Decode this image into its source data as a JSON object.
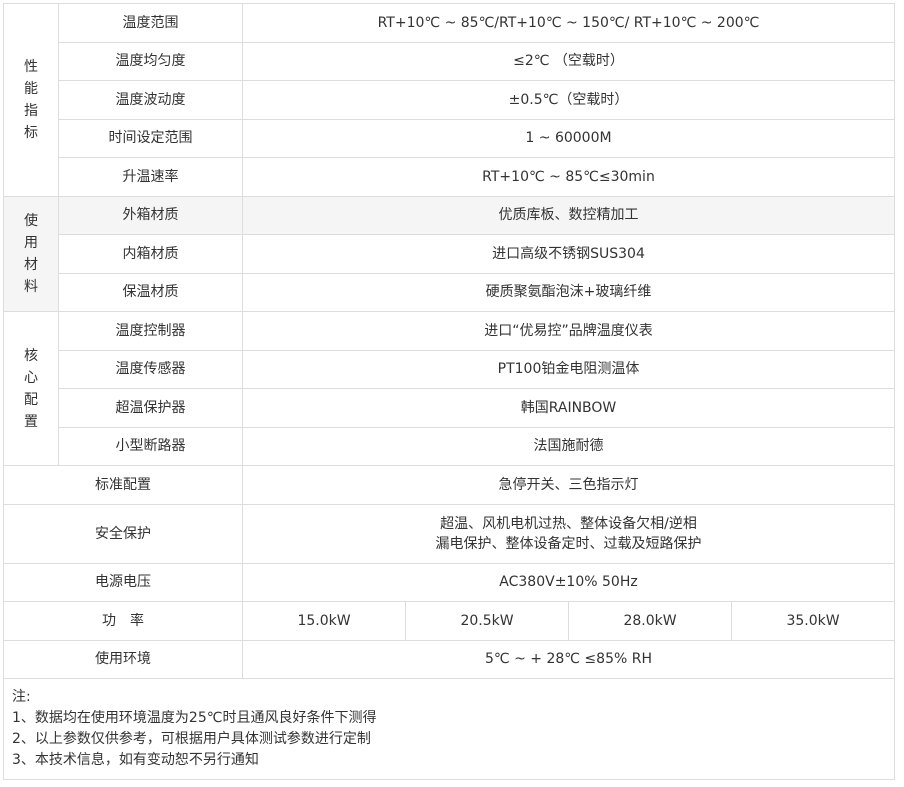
{
  "groups": [
    {
      "label": "性能指标",
      "rows": [
        {
          "name": "温度范围",
          "value": "RT+10℃ ~ 85℃/RT+10℃ ~ 150℃/ RT+10℃ ~ 200℃"
        },
        {
          "name": "温度均匀度",
          "value": "≤2℃ （空载时）"
        },
        {
          "name": "温度波动度",
          "value": "±0.5℃（空载时）"
        },
        {
          "name": "时间设定范围",
          "value": "1 ~ 60000M"
        },
        {
          "name": "升温速率",
          "value": "RT+10℃ ~ 85℃≤30min"
        }
      ]
    },
    {
      "label": "使用材料",
      "rows": [
        {
          "name": "外箱材质",
          "value": "优质库板、数控精加工"
        },
        {
          "name": "内箱材质",
          "value": "进口高级不锈钢SUS304"
        },
        {
          "name": "保温材质",
          "value": "硬质聚氨酯泡沫+玻璃纤维"
        }
      ]
    },
    {
      "label": "核心配置",
      "rows": [
        {
          "name": "温度控制器",
          "value": "进口“优易控”品牌温度仪表"
        },
        {
          "name": "温度传感器",
          "value": "PT100铂金电阻测温体"
        },
        {
          "name": "超温保护器",
          "value": "韩国RAINBOW"
        },
        {
          "name": "小型断路器",
          "value": "法国施耐德"
        }
      ]
    }
  ],
  "standard": {
    "name": "标准配置",
    "value": "急停开关、三色指示灯"
  },
  "safety": {
    "name": "安全保护",
    "line1": "超温、风机电机过热、整体设备欠相/逆相",
    "line2": "漏电保护、整体设备定时、过载及短路保护"
  },
  "voltage": {
    "name": "电源电压",
    "value": "AC380V±10% 50Hz"
  },
  "power": {
    "name": "功　率",
    "values": [
      "15.0kW",
      "20.5kW",
      "28.0kW",
      "35.0kW"
    ]
  },
  "environment": {
    "name": "使用环境",
    "value": "5℃ ~ + 28℃ ≤85% RH"
  },
  "notes": [
    "注:",
    "1、数据均在使用环境温度为25℃时且通风良好条件下测得",
    "2、以上参数仅供参考，可根据用户具体测试参数进行定制",
    "3、本技术信息，如有变动恕不另行通知"
  ]
}
